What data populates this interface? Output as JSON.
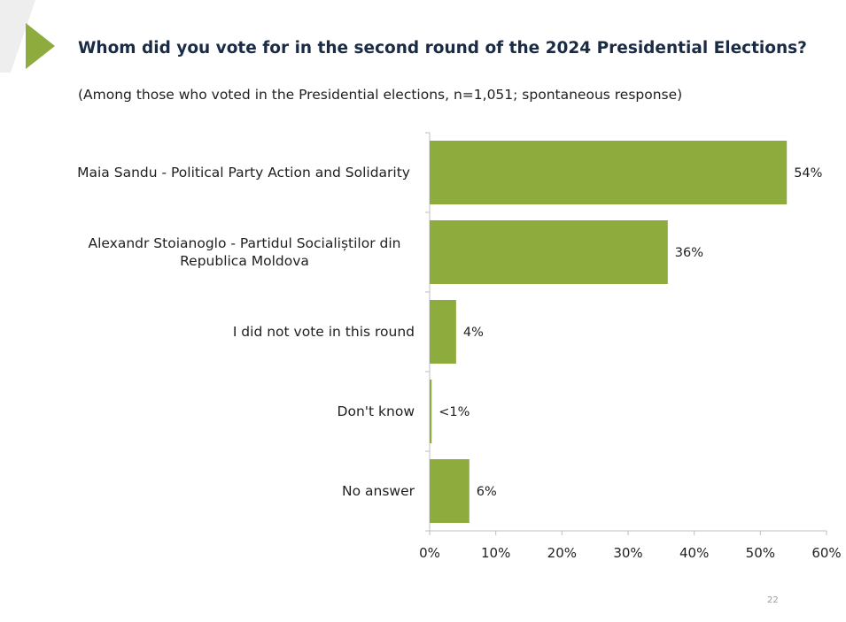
{
  "header": {
    "title": "Whom did you vote for in the second round of the 2024 Presidential Elections?",
    "subtitle": "(Among those who voted in the Presidential elections, n=1,051; spontaneous response)"
  },
  "page_number": "22",
  "colors": {
    "bar": "#8eab3e",
    "accent_triangle": "#8eab3e",
    "corner_shape": "#eeeeee",
    "title": "#1a2b45",
    "axis": "#bfbfbf"
  },
  "icons": {
    "accent": "triangle-play-icon"
  },
  "chart_data": {
    "type": "bar",
    "orientation": "horizontal",
    "title": "",
    "xlabel": "",
    "ylabel": "",
    "categories": [
      [
        "Maia Sandu - Political Party Action and Solidarity"
      ],
      [
        "Alexandr Stoianoglo - Partidul Socialiștilor din",
        "Republica Moldova"
      ],
      [
        "I did not vote in this round"
      ],
      [
        "Don't know"
      ],
      [
        "No answer"
      ]
    ],
    "values": [
      54,
      36,
      4,
      0.3,
      6
    ],
    "value_labels": [
      "54%",
      "36%",
      "4%",
      "<1%",
      "6%"
    ],
    "xlim": [
      0,
      60
    ],
    "ticks": [
      0,
      10,
      20,
      30,
      40,
      50,
      60
    ],
    "tick_labels": [
      "0%",
      "10%",
      "20%",
      "30%",
      "40%",
      "50%",
      "60%"
    ],
    "grid": false,
    "legend": "none"
  }
}
